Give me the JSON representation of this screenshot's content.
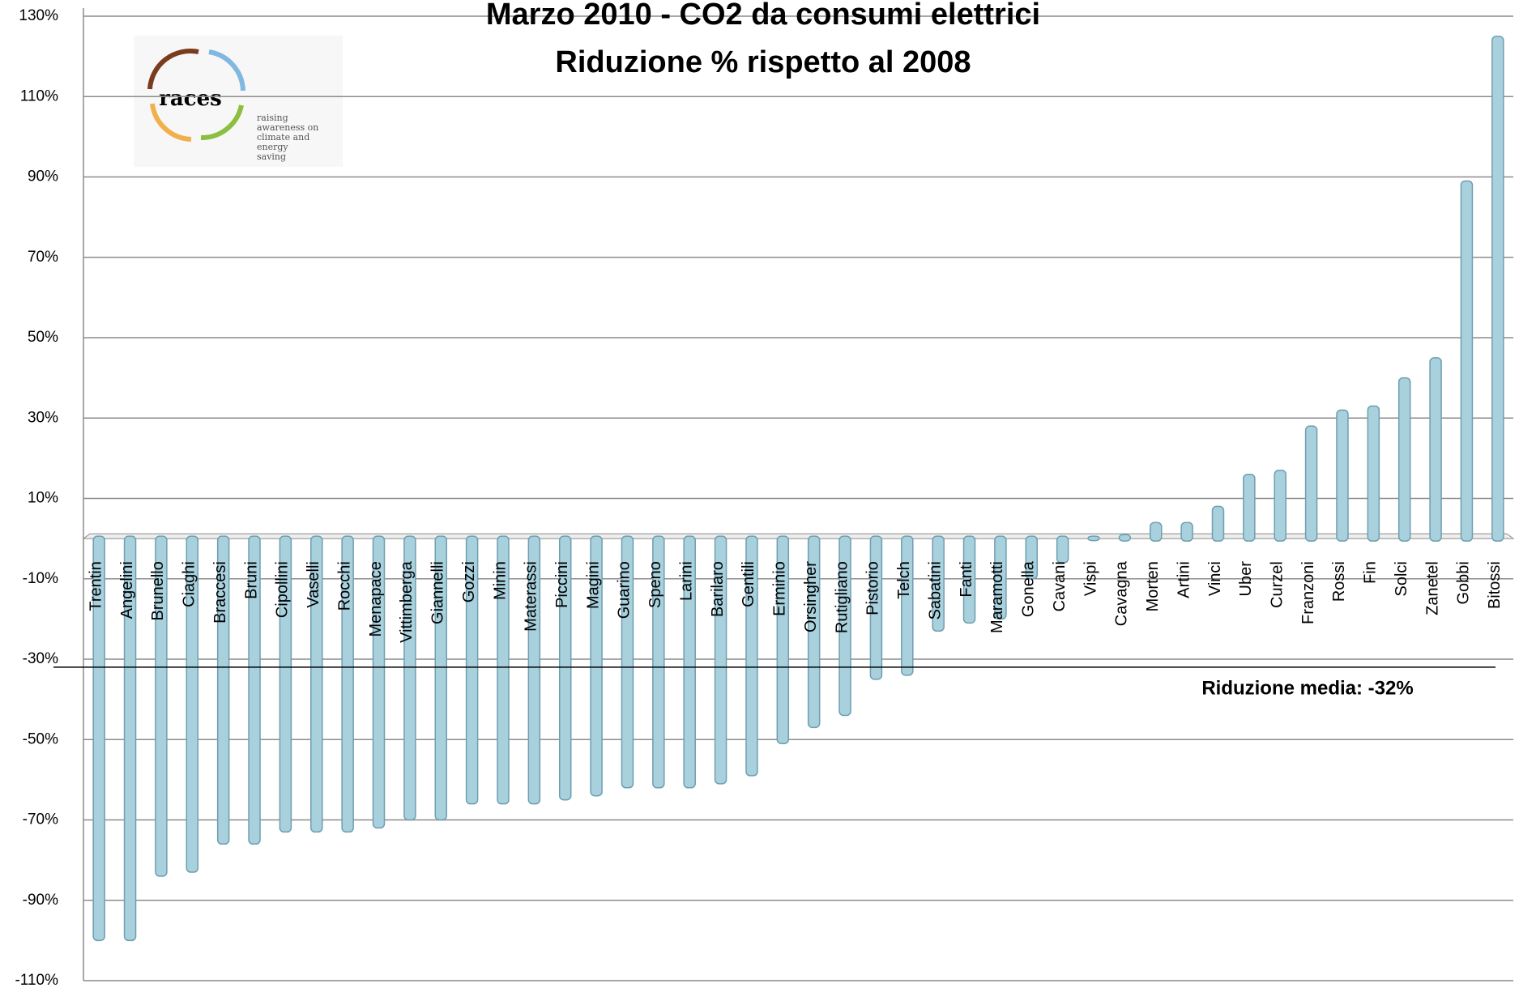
{
  "chart_data": {
    "type": "bar",
    "title": [
      "Marzo 2010 - CO2 da consumi elettrici",
      "Riduzione % rispetto al 2008"
    ],
    "categories": [
      "Trentin",
      "Angelini",
      "Brunello",
      "Ciaghi",
      "Braccesi",
      "Bruni",
      "Cipollini",
      "Vaselli",
      "Rocchi",
      "Menapace",
      "Vittimberga",
      "Giannelli",
      "Gozzi",
      "Minin",
      "Materassi",
      "Piccini",
      "Magini",
      "Guarino",
      "Speno",
      "Larini",
      "Barilaro",
      "Gentili",
      "Erminio",
      "Orsingher",
      "Rutigliano",
      "Pistorio",
      "Telch",
      "Sabatini",
      "Fanti",
      "Maramotti",
      "Gonella",
      "Cavani",
      "Vispi",
      "Cavagna",
      "Morten",
      "Artini",
      "Vinci",
      "Uber",
      "Curzel",
      "Franzoni",
      "Rossi",
      "Fin",
      "Solci",
      "Zanetel",
      "Gobbi",
      "Bitossi"
    ],
    "values": [
      -100,
      -100,
      -84,
      -83,
      -76,
      -76,
      -73,
      -73,
      -73,
      -72,
      -70,
      -70,
      -66,
      -66,
      -66,
      -65,
      -64,
      -62,
      -62,
      -62,
      -61,
      -59,
      -51,
      -47,
      -44,
      -35,
      -34,
      -23,
      -21,
      -20,
      -10,
      -6,
      0.5,
      1,
      4,
      4,
      8,
      16,
      17,
      28,
      32,
      33,
      40,
      45,
      89,
      125
    ],
    "color": "#a8d0dd",
    "ylim": [
      -110,
      130
    ],
    "yticks": [
      {
        "value": -110,
        "label": "-110%"
      },
      {
        "value": -90,
        "label": "-90%"
      },
      {
        "value": -70,
        "label": "-70%"
      },
      {
        "value": -50,
        "label": "-50%"
      },
      {
        "value": -30,
        "label": "-30%"
      },
      {
        "value": -10,
        "label": "-10%"
      },
      {
        "value": 10,
        "label": "10%"
      },
      {
        "value": 30,
        "label": "30%"
      },
      {
        "value": 50,
        "label": "50%"
      },
      {
        "value": 70,
        "label": "70%"
      },
      {
        "value": 90,
        "label": "90%"
      },
      {
        "value": 110,
        "label": "110%"
      },
      {
        "value": 130,
        "label": "130%"
      }
    ],
    "grid": true,
    "mean_line": -32,
    "mean_label": "Riduzione media: -32%",
    "logo": {
      "name": "races",
      "tagline": [
        "raising",
        "awareness on",
        "climate and",
        "energy",
        "saving"
      ]
    }
  }
}
